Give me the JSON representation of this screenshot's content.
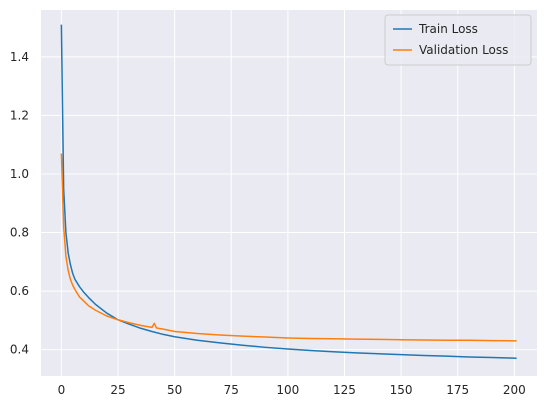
{
  "chart_data": {
    "type": "line",
    "title": "",
    "xlabel": "",
    "ylabel": "",
    "xlim": [
      -9,
      210
    ],
    "ylim": [
      0.31,
      1.56
    ],
    "xticks": [
      0,
      25,
      50,
      75,
      100,
      125,
      150,
      175,
      200
    ],
    "yticks": [
      0.4,
      0.6,
      0.8,
      1.0,
      1.2,
      1.4
    ],
    "ytick_labels": [
      "0.4",
      "0.6",
      "0.8",
      "1.0",
      "1.2",
      "1.4"
    ],
    "grid": true,
    "legend": "top-right",
    "series": [
      {
        "name": "Train Loss",
        "color": "#1f77b4",
        "x": [
          0,
          1,
          2,
          3,
          4,
          5,
          6,
          8,
          10,
          12,
          15,
          20,
          25,
          30,
          35,
          40,
          45,
          50,
          60,
          70,
          80,
          90,
          100,
          110,
          120,
          130,
          140,
          150,
          160,
          170,
          180,
          190,
          200,
          201
        ],
        "y": [
          1.51,
          0.95,
          0.8,
          0.73,
          0.69,
          0.66,
          0.64,
          0.615,
          0.595,
          0.578,
          0.555,
          0.525,
          0.502,
          0.487,
          0.473,
          0.462,
          0.452,
          0.444,
          0.432,
          0.423,
          0.415,
          0.408,
          0.402,
          0.397,
          0.393,
          0.389,
          0.386,
          0.383,
          0.38,
          0.378,
          0.375,
          0.373,
          0.371,
          0.37
        ]
      },
      {
        "name": "Validation Loss",
        "color": "#ff7f0e",
        "x": [
          0,
          1,
          2,
          3,
          4,
          5,
          6,
          8,
          10,
          12,
          15,
          20,
          25,
          30,
          35,
          40,
          41,
          42,
          45,
          50,
          60,
          70,
          80,
          90,
          100,
          110,
          120,
          130,
          140,
          150,
          160,
          170,
          180,
          190,
          200,
          201
        ],
        "y": [
          1.07,
          0.82,
          0.72,
          0.67,
          0.64,
          0.62,
          0.605,
          0.58,
          0.565,
          0.55,
          0.535,
          0.515,
          0.502,
          0.492,
          0.483,
          0.476,
          0.49,
          0.474,
          0.47,
          0.462,
          0.455,
          0.45,
          0.446,
          0.443,
          0.44,
          0.438,
          0.437,
          0.436,
          0.435,
          0.434,
          0.433,
          0.432,
          0.432,
          0.431,
          0.43,
          0.43
        ]
      }
    ]
  }
}
